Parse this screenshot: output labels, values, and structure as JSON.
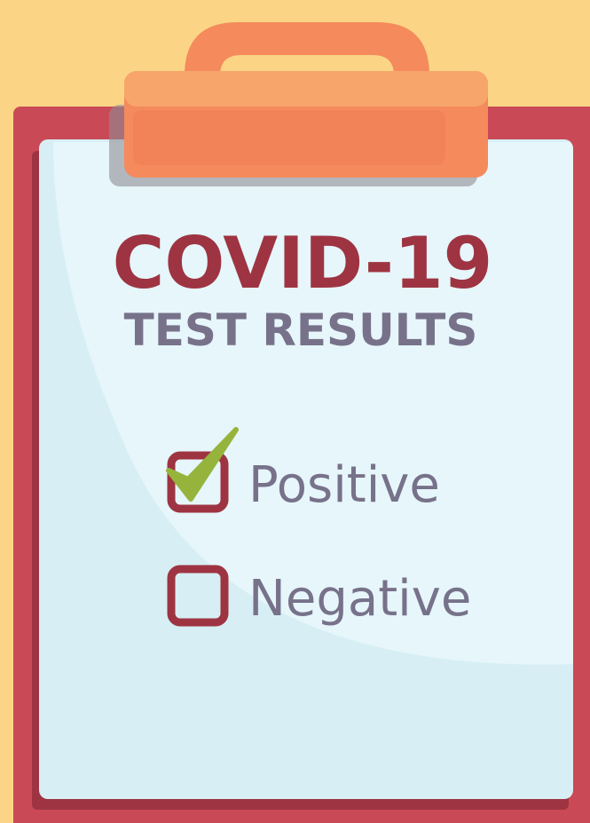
{
  "title": "COVID-19",
  "subtitle": "TEST RESULTS",
  "options": [
    {
      "label": "Positive",
      "checked": true
    },
    {
      "label": "Negative",
      "checked": false
    }
  ]
}
